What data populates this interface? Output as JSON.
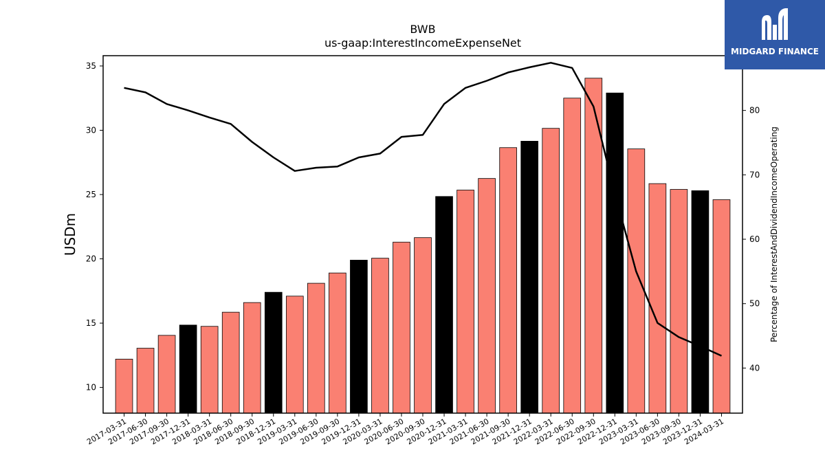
{
  "logo": {
    "text": "MIDGARD FINANCE",
    "colors": {
      "background": "#2f59a8",
      "foreground": "#ffffff"
    }
  },
  "chart_data": {
    "type": "bar",
    "title": "BWB",
    "subtitle": "us-gaap:InterestIncomeExpenseNet",
    "ylabel": "USDm",
    "y2label": "Percentage of InterestAndDividendIncomeOperating",
    "ylim": [
      8,
      35.8
    ],
    "y2lim": [
      33,
      88.5
    ],
    "yticks": [
      10,
      15,
      20,
      25,
      30,
      35
    ],
    "y2ticks": [
      40,
      50,
      60,
      70,
      80
    ],
    "grid": false,
    "colors": {
      "bar_default": "#fa8072",
      "bar_year_end": "#000000",
      "line": "#000000"
    },
    "categories": [
      "2017-03-31",
      "2017-06-30",
      "2017-09-30",
      "2017-12-31",
      "2018-03-31",
      "2018-06-30",
      "2018-09-30",
      "2018-12-31",
      "2019-03-31",
      "2019-06-30",
      "2019-09-30",
      "2019-12-31",
      "2020-03-31",
      "2020-06-30",
      "2020-09-30",
      "2020-12-31",
      "2021-03-31",
      "2021-06-30",
      "2021-09-30",
      "2021-12-31",
      "2022-03-31",
      "2022-06-30",
      "2022-09-30",
      "2022-12-31",
      "2023-03-31",
      "2023-06-30",
      "2023-09-30",
      "2023-12-31",
      "2024-03-31"
    ],
    "series": [
      {
        "kind": "bar",
        "axis": "left",
        "values": [
          12.2,
          13.05,
          14.05,
          14.85,
          14.75,
          15.85,
          16.6,
          17.4,
          17.1,
          18.1,
          18.9,
          19.9,
          20.05,
          21.3,
          21.65,
          24.85,
          25.35,
          26.25,
          28.65,
          29.15,
          30.15,
          32.5,
          34.05,
          32.9,
          28.55,
          25.85,
          25.4,
          25.3,
          24.6
        ],
        "year_end": [
          false,
          false,
          false,
          true,
          false,
          false,
          false,
          true,
          false,
          false,
          false,
          true,
          false,
          false,
          false,
          true,
          false,
          false,
          false,
          true,
          false,
          false,
          false,
          true,
          false,
          false,
          false,
          true,
          false
        ]
      },
      {
        "kind": "line",
        "axis": "right",
        "values": [
          83.5,
          82.8,
          81.0,
          80.0,
          78.9,
          77.9,
          75.1,
          72.7,
          70.6,
          71.1,
          71.3,
          72.7,
          73.3,
          75.9,
          76.2,
          81.0,
          83.5,
          84.6,
          85.9,
          86.7,
          87.4,
          86.6,
          80.6,
          67.1,
          55.0,
          47.0,
          44.8,
          43.4,
          41.9
        ]
      }
    ]
  }
}
